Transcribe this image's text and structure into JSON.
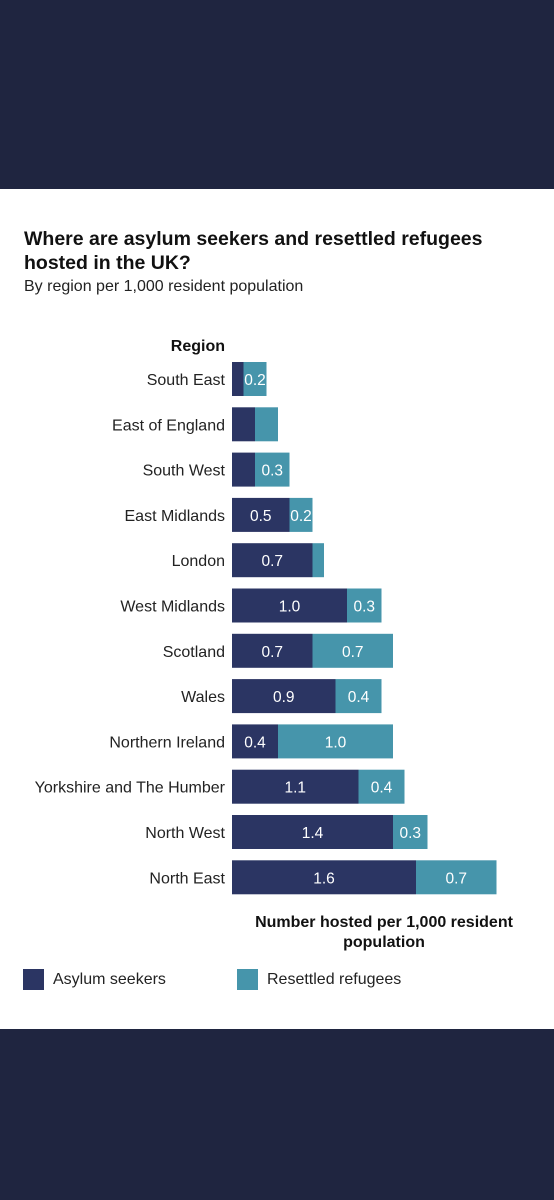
{
  "title": "Where are asylum seekers and resettled refugees hosted in the UK?",
  "subtitle": "By region per 1,000 resident population",
  "colors": {
    "asylum": "#2b3563",
    "refugees": "#4695ab",
    "background": "#1f2540"
  },
  "chart_data": {
    "type": "bar",
    "orientation": "horizontal",
    "stacked": true,
    "category_header": "Region",
    "xlabel": "Number hosted per 1,000 resident population",
    "categories": [
      "South East",
      "East of England",
      "South West",
      "East Midlands",
      "London",
      "West Midlands",
      "Scotland",
      "Wales",
      "Northern Ireland",
      "Yorkshire and The Humber",
      "North West",
      "North East"
    ],
    "series": [
      {
        "name": "Asylum seekers",
        "values": [
          0.1,
          0.2,
          0.2,
          0.5,
          0.7,
          1.0,
          0.7,
          0.9,
          0.4,
          1.1,
          1.4,
          1.6
        ],
        "labels": [
          "",
          "",
          "",
          "0.5",
          "0.7",
          "1.0",
          "0.7",
          "0.9",
          "0.4",
          "1.1",
          "1.4",
          "1.6"
        ]
      },
      {
        "name": "Resettled refugees",
        "values": [
          0.2,
          0.2,
          0.3,
          0.2,
          0.1,
          0.3,
          0.7,
          0.4,
          1.0,
          0.4,
          0.3,
          0.7
        ],
        "labels": [
          "0.2",
          "",
          "0.3",
          "0.2",
          "",
          "0.3",
          "0.7",
          "0.4",
          "1.0",
          "0.4",
          "0.3",
          "0.7"
        ]
      }
    ],
    "xlim": [
      0,
      2.4
    ],
    "grid": false,
    "legend": "bottom-left"
  }
}
